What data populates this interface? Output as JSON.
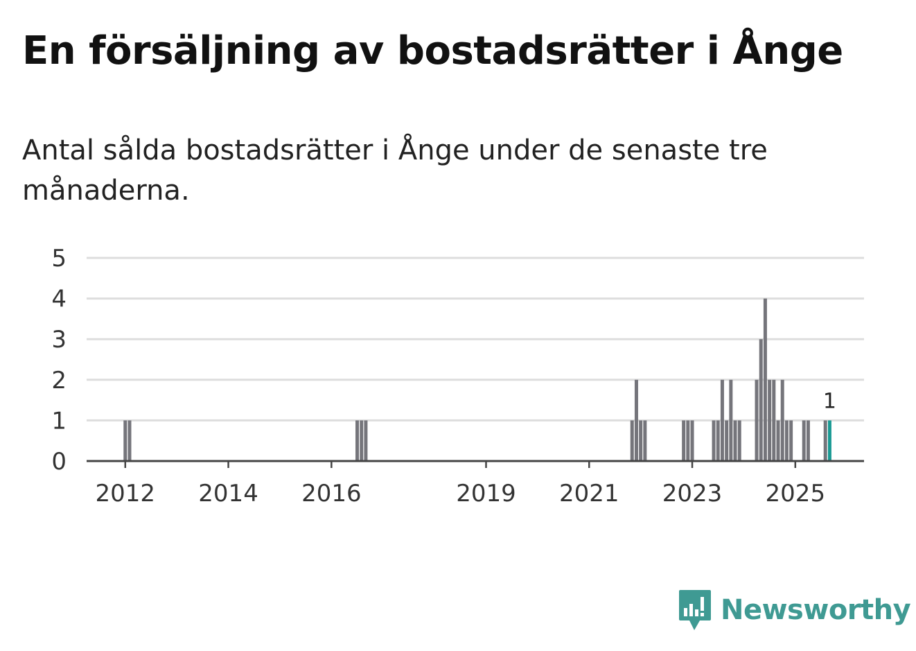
{
  "title": "En försäljning av bostadsrätter i Ånge",
  "subtitle": "Antal sålda bostadsrätter i Ånge under de senaste tre månaderna.",
  "brand": {
    "name": "Newsworthy",
    "color": "#3f9a93",
    "icon": "newsworthy-logo-icon"
  },
  "chart_data": {
    "type": "bar",
    "title": "Antal sålda bostadsrätter i Ånge",
    "xlabel": "",
    "ylabel": "",
    "x_unit": "month index (0 = Jan 2012)",
    "ylim": [
      0,
      5
    ],
    "yticks": [
      0,
      1,
      2,
      3,
      4,
      5
    ],
    "xticks": [
      {
        "label": "2012",
        "x": 0
      },
      {
        "label": "2014",
        "x": 24
      },
      {
        "label": "2016",
        "x": 48
      },
      {
        "label": "2019",
        "x": 84
      },
      {
        "label": "2021",
        "x": 108
      },
      {
        "label": "2023",
        "x": 132
      },
      {
        "label": "2025",
        "x": 156
      }
    ],
    "xlim": [
      -9,
      172
    ],
    "grid": true,
    "bar_color": "#75757b",
    "highlight_color": "#1a9a94",
    "series": [
      {
        "name": "Sålda bostadsrätter",
        "x": [
          0,
          1,
          54,
          55,
          56,
          118,
          119,
          120,
          121,
          130,
          131,
          132,
          137,
          138,
          139,
          140,
          141,
          142,
          143,
          147,
          148,
          149,
          150,
          151,
          152,
          153,
          154,
          155,
          158,
          159,
          163,
          164
        ],
        "values": [
          1,
          1,
          1,
          1,
          1,
          1,
          2,
          1,
          1,
          1,
          1,
          1,
          1,
          1,
          2,
          1,
          2,
          1,
          1,
          2,
          3,
          4,
          2,
          2,
          1,
          2,
          1,
          1,
          1,
          1,
          1,
          1
        ]
      }
    ],
    "highlight": {
      "x": 164,
      "value": 1,
      "label": "1"
    }
  }
}
